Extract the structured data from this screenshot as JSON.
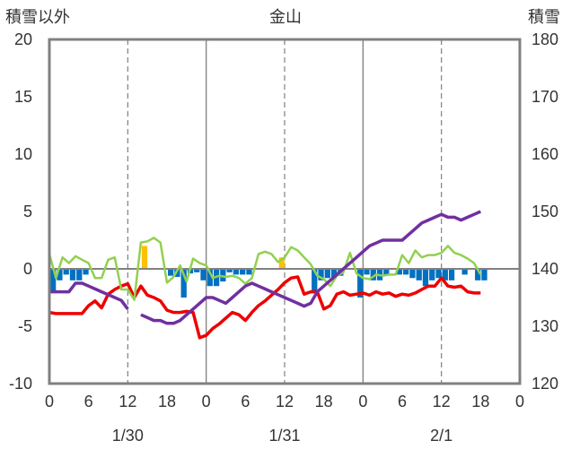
{
  "chart_data": {
    "type": "line",
    "title": "金山",
    "left_axis_label": "積雪以外",
    "right_axis_label": "積雪",
    "ylim": [
      -10,
      20
    ],
    "y_ticks": [
      20,
      15,
      10,
      5,
      0,
      -5,
      -10
    ],
    "y2lim": [
      120,
      180
    ],
    "y2_ticks": [
      180,
      170,
      160,
      150,
      140,
      130,
      120
    ],
    "xlim": [
      0,
      72
    ],
    "x_tick_labels": [
      "0",
      "6",
      "12",
      "18",
      "0",
      "6",
      "12",
      "18",
      "0",
      "6",
      "12",
      "18",
      "0"
    ],
    "date_labels": [
      {
        "label": "1/30",
        "hour": 12
      },
      {
        "label": "1/31",
        "hour": 36
      },
      {
        "label": "2/1",
        "hour": 60
      }
    ],
    "grid": {
      "day_lines": [
        24,
        48
      ],
      "dashed_lines": [
        12,
        36,
        60
      ],
      "zero_line": true
    },
    "colors": {
      "temperature": "#ee0000",
      "snow_depth": "#7030a0",
      "wind": "#92d050",
      "sunshine": "#ffc000",
      "precipitation": "#0070c0",
      "frame": "#808080",
      "grid": "#808080"
    },
    "series": [
      {
        "key": "temperature",
        "axis": "left",
        "x": [
          0,
          1,
          2,
          3,
          4,
          5,
          6,
          7,
          8,
          9,
          10,
          11,
          12,
          13,
          14,
          15,
          16,
          17,
          18,
          19,
          20,
          21,
          22,
          23,
          24,
          25,
          26,
          27,
          28,
          29,
          30,
          31,
          32,
          33,
          34,
          35,
          36,
          37,
          38,
          39,
          40,
          41,
          42,
          43,
          44,
          45,
          46,
          47,
          48,
          49,
          50,
          51,
          52,
          53,
          54,
          55,
          56,
          57,
          58,
          59,
          60,
          61,
          62,
          63,
          64,
          65,
          66
        ],
        "values": [
          -3.8,
          -3.9,
          -3.9,
          -3.9,
          -3.9,
          -3.9,
          -3.2,
          -2.8,
          -3.4,
          -2.2,
          -1.8,
          -1.5,
          -1.3,
          -2.5,
          -1.5,
          -2.3,
          -2.5,
          -2.8,
          -3.6,
          -3.8,
          -3.8,
          -3.7,
          -3.8,
          -6,
          -5.8,
          -5.2,
          -4.8,
          -4.3,
          -3.8,
          -4,
          -4.5,
          -3.8,
          -3.2,
          -2.8,
          -2.3,
          -1.8,
          -1.2,
          -0.8,
          -0.7,
          -2.2,
          -2,
          -2,
          -3.5,
          -3.2,
          -2.2,
          -2,
          -2.3,
          -2.2,
          -2.1,
          -2.3,
          -2,
          -2.2,
          -2.1,
          -2.4,
          -2.2,
          -2.3,
          -2.1,
          -1.8,
          -1.5,
          -1.5,
          -0.8,
          -1.5,
          -1.6,
          -1.5,
          -2,
          -2.1,
          -2.1
        ]
      },
      {
        "key": "wind",
        "axis": "left",
        "x": [
          0,
          1,
          2,
          3,
          4,
          5,
          6,
          7,
          8,
          9,
          10,
          11,
          12,
          13,
          14,
          15,
          16,
          17,
          18,
          19,
          20,
          21,
          22,
          23,
          24,
          25,
          26,
          27,
          28,
          29,
          30,
          31,
          32,
          33,
          34,
          35,
          36,
          37,
          38,
          39,
          40,
          41,
          42,
          43,
          44,
          45,
          46,
          47,
          48,
          49,
          50,
          51,
          52,
          53,
          54,
          55,
          56,
          57,
          58,
          59,
          60,
          61,
          62,
          63,
          64,
          65,
          66
        ],
        "values": [
          1.3,
          -0.8,
          1,
          0.5,
          1.1,
          0.8,
          0.5,
          -0.8,
          -0.8,
          0.8,
          1,
          -1.8,
          -1.8,
          -2.7,
          2.3,
          2.4,
          2.7,
          2.3,
          -1.2,
          -0.7,
          0.3,
          -1.1,
          0.9,
          0.5,
          0.3,
          -0.8,
          -0.6,
          -0.7,
          -0.6,
          -0.8,
          -1.3,
          -0.8,
          1.3,
          1.5,
          1.3,
          0.6,
          1,
          1.9,
          1.6,
          1,
          0.4,
          -0.6,
          -0.9,
          -1.5,
          -0.6,
          -0.3,
          1.4,
          -0.4,
          -0.8,
          -0.9,
          -0.5,
          -0.6,
          -0.5,
          -0.5,
          1.2,
          0.5,
          1.6,
          1,
          1.2,
          1.2,
          1.4,
          2,
          1.4,
          1.2,
          0.9,
          0.5,
          -0.5
        ]
      },
      {
        "key": "snow_depth",
        "axis": "right",
        "x": [
          0,
          1,
          2,
          3,
          4,
          5,
          6,
          7,
          8,
          9,
          10,
          11,
          12,
          null,
          14,
          15,
          16,
          17,
          18,
          19,
          20,
          21,
          22,
          23,
          24,
          25,
          26,
          27,
          28,
          29,
          30,
          31,
          32,
          33,
          34,
          35,
          36,
          37,
          38,
          39,
          40,
          41,
          42,
          43,
          44,
          45,
          46,
          47,
          48,
          49,
          50,
          51,
          52,
          53,
          54,
          55,
          56,
          57,
          58,
          59,
          60,
          61,
          62,
          63,
          64,
          65,
          66
        ],
        "values": [
          136,
          136,
          136,
          136,
          137.5,
          137.5,
          137,
          136.5,
          136,
          135.5,
          135,
          134.5,
          133,
          null,
          132,
          131.5,
          131,
          131,
          130.5,
          130.5,
          131,
          132,
          133,
          134,
          135,
          135,
          134.5,
          134,
          135,
          136,
          137,
          137.5,
          137,
          136.5,
          136,
          135.5,
          135,
          134.5,
          134,
          133.5,
          134,
          136,
          137,
          138,
          139,
          140,
          141,
          142,
          143,
          144,
          144.5,
          145,
          145,
          145,
          145,
          146,
          147,
          148,
          148.5,
          149,
          149.5,
          149,
          149,
          148.5,
          149,
          149.5,
          150
        ]
      }
    ],
    "bars": [
      {
        "key": "precipitation",
        "axis": "left",
        "x": [
          0,
          1,
          2,
          3,
          4,
          5,
          6,
          18,
          19,
          20,
          21,
          22,
          23,
          24,
          25,
          26,
          27,
          28,
          29,
          30,
          40,
          41,
          42,
          43,
          44,
          47,
          48,
          49,
          50,
          51,
          52,
          53,
          54,
          55,
          56,
          57,
          58,
          59,
          60,
          61,
          62,
          63,
          64,
          65,
          66
        ],
        "values": [
          -2,
          -1,
          -0.5,
          -1,
          -1,
          -0.5,
          0,
          -0.6,
          -0.7,
          -2.5,
          -0.4,
          -0.3,
          -1,
          -1.5,
          -1.5,
          -1.1,
          -0.3,
          -0.5,
          -0.5,
          -0.5,
          -2,
          -1,
          -0.8,
          -0.8,
          -0.6,
          -2.5,
          -0.5,
          -1,
          -1,
          -0.5,
          0,
          -0.5,
          -0.5,
          -0.8,
          -1,
          -1.5,
          -1,
          -0.8,
          -1,
          -1,
          0,
          -0.5,
          0,
          -1,
          -1
        ]
      },
      {
        "key": "sunshine",
        "axis": "left",
        "x": [
          14,
          35
        ],
        "values": [
          2,
          1
        ]
      }
    ]
  }
}
